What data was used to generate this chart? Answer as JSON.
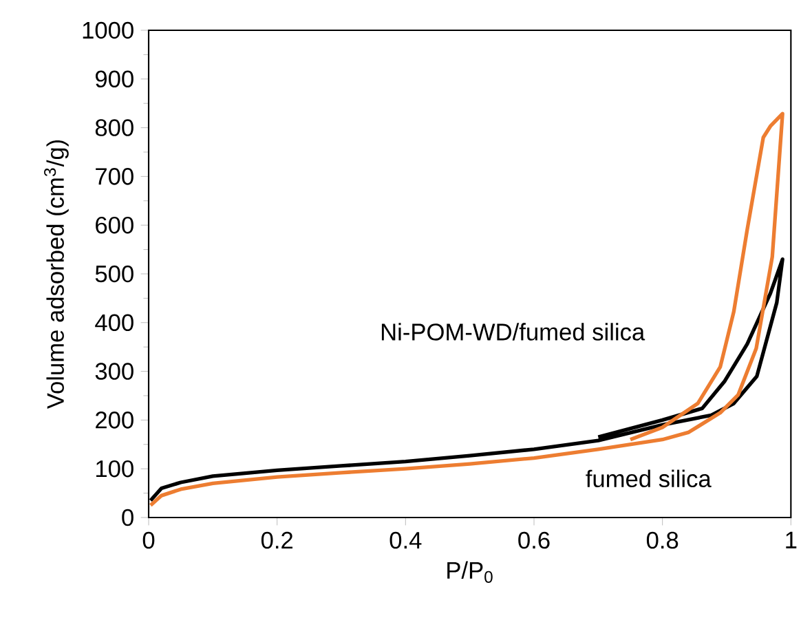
{
  "chart_data": {
    "type": "line",
    "xlabel": "P/P$_{0}$",
    "ylabel": "Volume adsorbed (cm$^{3}$/g)",
    "xlim": [
      0,
      1
    ],
    "ylim": [
      0,
      1000
    ],
    "xticks": [
      0,
      0.2,
      0.4,
      0.6,
      0.8,
      1
    ],
    "yticks": [
      0,
      100,
      200,
      300,
      400,
      500,
      600,
      700,
      800,
      900,
      1000
    ],
    "grid": false,
    "marker": "none",
    "line_style": "solid",
    "annotations": [
      "Ni-POM-WD/fumed silica",
      "fumed silica"
    ],
    "series": [
      {
        "color": "#000000",
        "x": [
          0.003,
          0.02,
          0.05,
          0.1,
          0.2,
          0.3,
          0.4,
          0.5,
          0.6,
          0.7,
          0.8,
          0.876,
          0.911,
          0.947,
          0.978,
          0.987,
          0.968,
          0.932,
          0.897,
          0.862,
          0.8,
          0.7
        ],
        "values": [
          35,
          60,
          72,
          85,
          97,
          106,
          115,
          127,
          140,
          158,
          190,
          210,
          234,
          290,
          441,
          530,
          460,
          356,
          280,
          224,
          200,
          165
        ]
      },
      {
        "color": "#ed7d31",
        "x": [
          0.003,
          0.02,
          0.05,
          0.1,
          0.2,
          0.3,
          0.4,
          0.5,
          0.6,
          0.7,
          0.8,
          0.841,
          0.89,
          0.918,
          0.946,
          0.971,
          0.987,
          0.968,
          0.957,
          0.932,
          0.911,
          0.89,
          0.855,
          0.8,
          0.75
        ],
        "values": [
          25,
          45,
          58,
          70,
          83,
          92,
          100,
          110,
          122,
          140,
          160,
          175,
          215,
          252,
          347,
          535,
          829,
          803,
          780,
          591,
          422,
          309,
          234,
          185,
          160
        ]
      }
    ]
  }
}
